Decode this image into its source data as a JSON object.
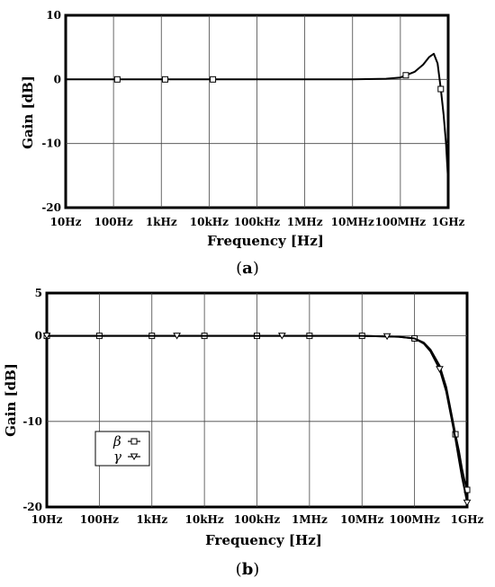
{
  "chart_data": [
    {
      "type": "line",
      "caption_letter": "a",
      "xlabel": "Frequency [Hz]",
      "ylabel": "Gain [dB]",
      "xscale": "log",
      "xlim": [
        10,
        1000000000
      ],
      "ylim": [
        -20,
        10
      ],
      "xticks": [
        "10Hz",
        "100Hz",
        "1kHz",
        "10kHz",
        "100kHz",
        "1MHz",
        "10MHz",
        "100MHz",
        "1GHz"
      ],
      "yticks": [
        "10",
        "0",
        "-10",
        "-20"
      ],
      "ytick_values": [
        10,
        0,
        -10,
        -20
      ],
      "grid": true,
      "legend": "none",
      "series": [
        {
          "marker": "square",
          "x": [
            10,
            100,
            1000,
            10000,
            100000,
            1000000,
            10000000,
            50000000,
            100000000,
            200000000,
            300000000,
            400000000,
            500000000,
            600000000,
            700000000,
            800000000,
            900000000,
            1000000000
          ],
          "y": [
            0,
            0,
            0,
            0,
            0,
            0,
            0,
            0.1,
            0.3,
            1.2,
            2.3,
            3.5,
            4.0,
            2.5,
            -1.5,
            -5.5,
            -10.0,
            -16.0
          ],
          "marker_x": [
            120,
            1200,
            12000,
            130000000,
            700000000
          ]
        }
      ]
    },
    {
      "type": "line",
      "caption_letter": "b",
      "xlabel": "Frequency [Hz]",
      "ylabel": "Gain [dB]",
      "xscale": "log",
      "xlim": [
        10,
        1000000000
      ],
      "ylim": [
        -20,
        5
      ],
      "xticks": [
        "10Hz",
        "100Hz",
        "1kHz",
        "10kHz",
        "100kHz",
        "1MHz",
        "10MHz",
        "100MHz",
        "1GHz"
      ],
      "yticks": [
        "5",
        "0",
        "-10",
        "-20"
      ],
      "ytick_values": [
        5,
        0,
        -10,
        -20
      ],
      "grid": true,
      "legend": "bottom-left",
      "series": [
        {
          "name": "β",
          "marker": "square",
          "x": [
            10,
            100,
            1000,
            10000,
            100000,
            1000000,
            10000000,
            50000000,
            100000000,
            150000000,
            200000000,
            300000000,
            400000000,
            500000000,
            600000000,
            700000000,
            800000000,
            900000000,
            1000000000
          ],
          "y": [
            0,
            0,
            0,
            0,
            0,
            0,
            0,
            -0.1,
            -0.3,
            -0.8,
            -1.6,
            -3.5,
            -6.0,
            -9.0,
            -11.5,
            -13.5,
            -15.5,
            -17.0,
            -18.0
          ],
          "marker_x": [
            10,
            100,
            1000,
            10000,
            100000,
            1000000,
            10000000,
            100000000,
            600000000,
            1000000000
          ]
        },
        {
          "name": "γ",
          "marker": "triangle-down",
          "x": [
            10,
            100,
            1000,
            10000,
            100000,
            1000000,
            10000000,
            50000000,
            100000000,
            150000000,
            200000000,
            300000000,
            400000000,
            500000000,
            600000000,
            700000000,
            800000000,
            900000000,
            1000000000
          ],
          "y": [
            0,
            0,
            0,
            0,
            0,
            0,
            0,
            -0.1,
            -0.3,
            -0.9,
            -1.8,
            -3.9,
            -6.5,
            -9.5,
            -12.0,
            -14.5,
            -16.5,
            -18.0,
            -19.5
          ],
          "marker_x": [
            10,
            3000,
            300000,
            30000000,
            300000000,
            1000000000
          ]
        }
      ]
    }
  ]
}
